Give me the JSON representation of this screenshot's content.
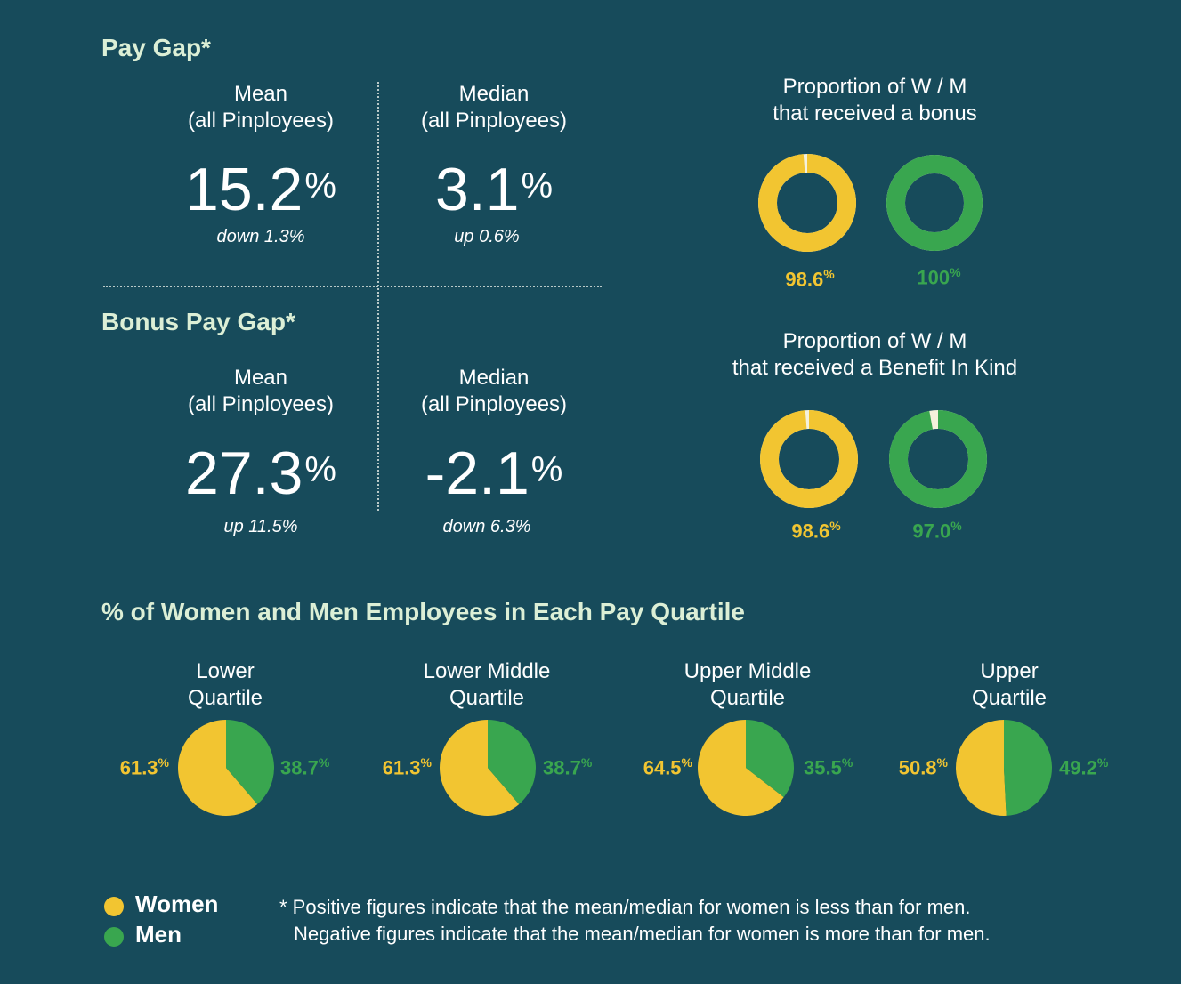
{
  "colors": {
    "background": "#174b5b",
    "women": "#f2c531",
    "men": "#39a64f",
    "title": "#dcefd6"
  },
  "pay_gap": {
    "title": "Pay Gap*",
    "mean": {
      "label1": "Mean",
      "label2": "(all Pinployees)",
      "value": "15.2",
      "unit": "%",
      "change": "down 1.3%"
    },
    "median": {
      "label1": "Median",
      "label2": "(all Pinployees)",
      "value": "3.1",
      "unit": "%",
      "change": "up 0.6%"
    }
  },
  "bonus_gap": {
    "title": "Bonus Pay Gap*",
    "mean": {
      "label1": "Mean",
      "label2": "(all Pinployees)",
      "value": "27.3",
      "unit": "%",
      "change": "up 11.5%"
    },
    "median": {
      "label1": "Median",
      "label2": "(all Pinployees)",
      "value": "-2.1",
      "unit": "%",
      "change": "down 6.3%"
    }
  },
  "bonus_prop": {
    "title1": "Proportion of W / M",
    "title2": "that received a bonus",
    "women": {
      "value": "98.6",
      "unit": "%"
    },
    "men": {
      "value": "100",
      "unit": "%"
    }
  },
  "bik_prop": {
    "title1": "Proportion of W / M",
    "title2": "that received a Benefit In Kind",
    "women": {
      "value": "98.6",
      "unit": "%"
    },
    "men": {
      "value": "97.0",
      "unit": "%"
    }
  },
  "quartiles": {
    "title": "% of Women and Men Employees in Each Pay Quartile",
    "items": [
      {
        "label1": "Lower",
        "label2": "Quartile",
        "women": "61.3",
        "men": "38.7",
        "unit": "%"
      },
      {
        "label1": "Lower Middle",
        "label2": "Quartile",
        "women": "61.3",
        "men": "38.7",
        "unit": "%"
      },
      {
        "label1": "Upper Middle",
        "label2": "Quartile",
        "women": "64.5",
        "men": "35.5",
        "unit": "%"
      },
      {
        "label1": "Upper",
        "label2": "Quartile",
        "women": "50.8",
        "men": "49.2",
        "unit": "%"
      }
    ]
  },
  "legend": {
    "women": "Women",
    "men": "Men"
  },
  "footnote": {
    "line1": "* Positive figures indicate that the mean/median for women is less than for men.",
    "line2": "Negative figures indicate that the mean/median for women is more than for men."
  },
  "chart_data": [
    {
      "type": "pie",
      "title": "Proportion of W / M that received a bonus",
      "categories": [
        "Women",
        "Men"
      ],
      "values": [
        98.6,
        100
      ]
    },
    {
      "type": "pie",
      "title": "Proportion of W / M that received a Benefit In Kind",
      "categories": [
        "Women",
        "Men"
      ],
      "values": [
        98.6,
        97.0
      ]
    },
    {
      "type": "pie",
      "title": "Lower Quartile",
      "categories": [
        "Women",
        "Men"
      ],
      "values": [
        61.3,
        38.7
      ]
    },
    {
      "type": "pie",
      "title": "Lower Middle Quartile",
      "categories": [
        "Women",
        "Men"
      ],
      "values": [
        61.3,
        38.7
      ]
    },
    {
      "type": "pie",
      "title": "Upper Middle Quartile",
      "categories": [
        "Women",
        "Men"
      ],
      "values": [
        64.5,
        35.5
      ]
    },
    {
      "type": "pie",
      "title": "Upper Quartile",
      "categories": [
        "Women",
        "Men"
      ],
      "values": [
        50.8,
        49.2
      ]
    }
  ]
}
